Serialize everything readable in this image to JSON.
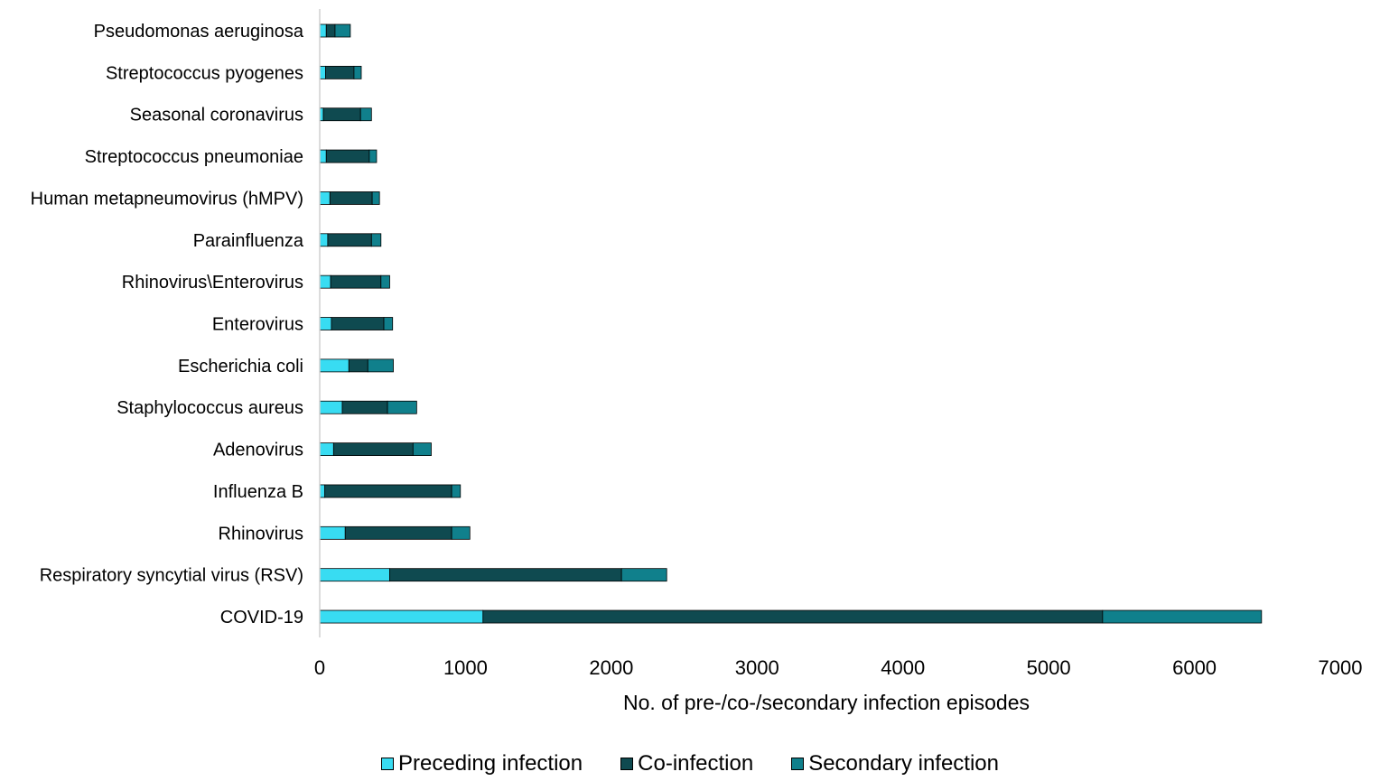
{
  "chart_data": {
    "type": "bar",
    "orientation": "horizontal",
    "stacked": true,
    "title": "",
    "xlabel": "No. of pre-/co-/secondary infection episodes",
    "ylabel": "",
    "xlim": [
      0,
      7000
    ],
    "xticks": [
      "0",
      "1000",
      "2000",
      "3000",
      "4000",
      "5000",
      "6000",
      "7000"
    ],
    "grid": false,
    "legend_position": "bottom",
    "categories": [
      "Pseudomonas aeruginosa",
      "Streptococcus pyogenes",
      "Seasonal coronavirus",
      "Streptococcus pneumoniae",
      "Human metapneumovirus (hMPV)",
      "Parainfluenza",
      "Rhinovirus\\Enterovirus",
      "Enterovirus",
      "Escherichia coli",
      "Staphylococcus aureus",
      "Adenovirus",
      "Influenza B",
      "Rhinovirus",
      "Respiratory syncytial virus (RSV)",
      "COVID-19"
    ],
    "series": [
      {
        "name": "Preceding infection",
        "color": "#38DCF2",
        "values": [
          45,
          40,
          25,
          45,
          70,
          55,
          75,
          80,
          200,
          155,
          95,
          35,
          175,
          480,
          1120
        ]
      },
      {
        "name": "Co-infection",
        "color": "#0F4A50",
        "values": [
          60,
          195,
          255,
          295,
          290,
          300,
          345,
          360,
          130,
          310,
          545,
          870,
          730,
          1590,
          4250
        ]
      },
      {
        "name": "Secondary infection",
        "color": "#10808C",
        "values": [
          105,
          50,
          75,
          50,
          50,
          65,
          60,
          60,
          175,
          200,
          125,
          60,
          125,
          310,
          1090
        ]
      }
    ]
  }
}
